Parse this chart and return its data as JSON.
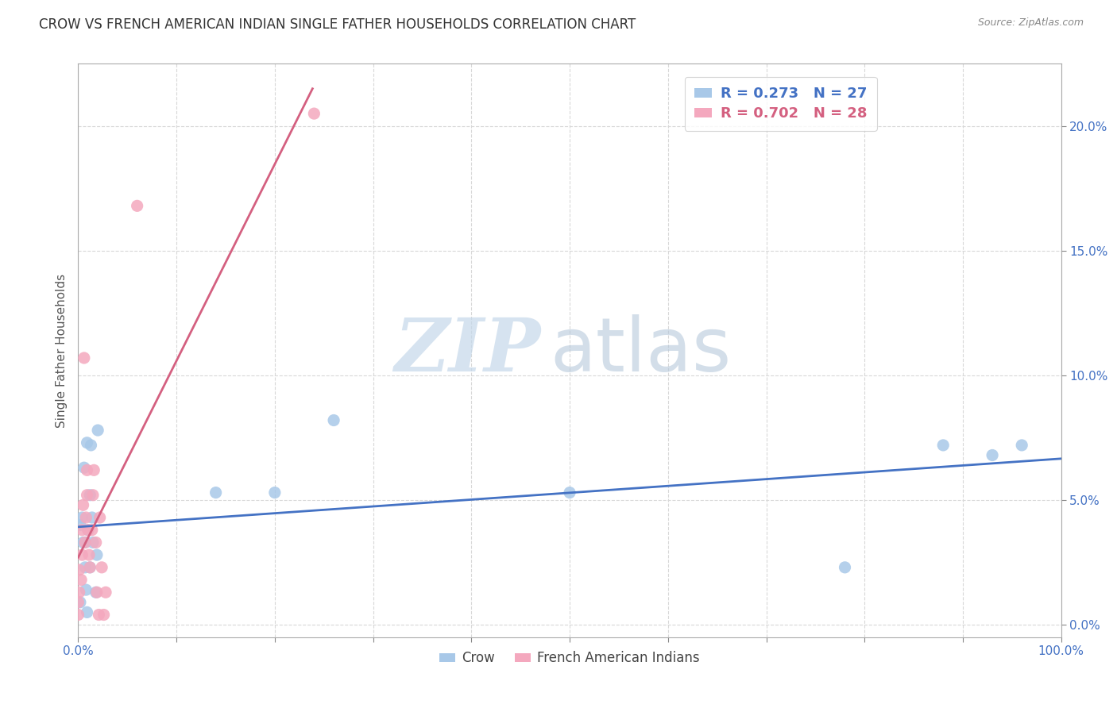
{
  "title": "CROW VS FRENCH AMERICAN INDIAN SINGLE FATHER HOUSEHOLDS CORRELATION CHART",
  "source": "Source: ZipAtlas.com",
  "ylabel": "Single Father Households",
  "xlim": [
    0,
    1.0
  ],
  "ylim": [
    -0.005,
    0.225
  ],
  "xticks_labeled": [
    0.0,
    1.0
  ],
  "xticks_minor": [
    0.1,
    0.2,
    0.3,
    0.4,
    0.5,
    0.6,
    0.7,
    0.8,
    0.9
  ],
  "yticks": [
    0.0,
    0.05,
    0.1,
    0.15,
    0.2
  ],
  "crow_color": "#a8c8e8",
  "french_color": "#f4a8be",
  "crow_line_color": "#4472c4",
  "french_line_color": "#d46080",
  "crow_R": 0.273,
  "crow_N": 27,
  "french_R": 0.702,
  "french_N": 28,
  "watermark_zip": "ZIP",
  "watermark_atlas": "atlas",
  "crow_x": [
    0.002,
    0.002,
    0.004,
    0.005,
    0.006,
    0.007,
    0.007,
    0.008,
    0.009,
    0.009,
    0.01,
    0.012,
    0.012,
    0.013,
    0.014,
    0.015,
    0.018,
    0.019,
    0.02,
    0.14,
    0.2,
    0.26,
    0.5,
    0.78,
    0.88,
    0.93,
    0.96
  ],
  "crow_y": [
    0.009,
    0.04,
    0.043,
    0.033,
    0.063,
    0.033,
    0.023,
    0.014,
    0.005,
    0.073,
    0.038,
    0.023,
    0.052,
    0.072,
    0.043,
    0.033,
    0.013,
    0.028,
    0.078,
    0.053,
    0.053,
    0.082,
    0.053,
    0.023,
    0.072,
    0.068,
    0.072
  ],
  "french_x": [
    0.0,
    0.0,
    0.001,
    0.001,
    0.003,
    0.004,
    0.004,
    0.005,
    0.006,
    0.007,
    0.008,
    0.009,
    0.009,
    0.01,
    0.011,
    0.012,
    0.014,
    0.015,
    0.016,
    0.018,
    0.019,
    0.021,
    0.022,
    0.024,
    0.026,
    0.028,
    0.06,
    0.24
  ],
  "french_y": [
    0.004,
    0.009,
    0.013,
    0.022,
    0.018,
    0.028,
    0.038,
    0.048,
    0.107,
    0.033,
    0.043,
    0.052,
    0.062,
    0.038,
    0.028,
    0.023,
    0.038,
    0.052,
    0.062,
    0.033,
    0.013,
    0.004,
    0.043,
    0.023,
    0.004,
    0.013,
    0.168,
    0.205
  ],
  "background_color": "#ffffff",
  "grid_color": "#d8d8d8",
  "marker_size": 120
}
